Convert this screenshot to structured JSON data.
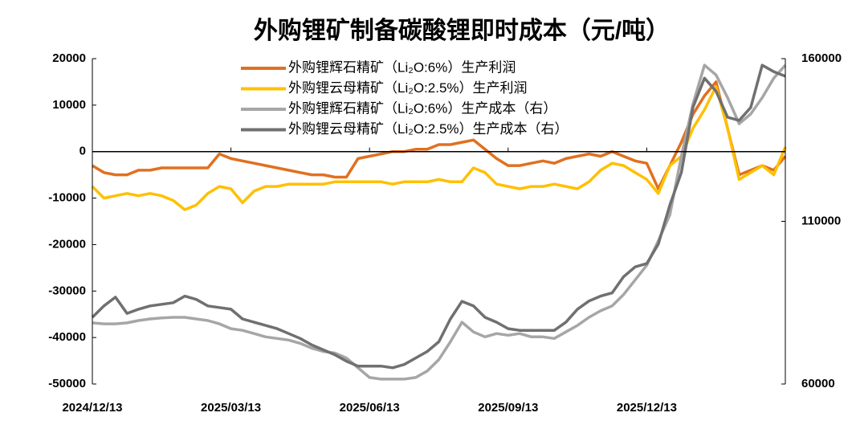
{
  "chart_data": {
    "type": "line",
    "title": "外购锂矿制备碳酸锂即时成本（元/吨）",
    "categories": [
      "2024/12/13",
      null,
      null,
      null,
      null,
      null,
      null,
      null,
      null,
      null,
      null,
      null,
      "2025/03/13",
      null,
      null,
      null,
      null,
      null,
      null,
      null,
      null,
      null,
      null,
      null,
      "2025/06/13",
      null,
      null,
      null,
      null,
      null,
      null,
      null,
      null,
      null,
      null,
      null,
      "2025/09/13",
      null,
      null,
      null,
      null,
      null,
      null,
      null,
      null,
      null,
      null,
      null,
      "2025/12/13",
      null,
      null,
      null,
      null,
      null,
      null,
      null,
      null,
      null,
      null,
      null,
      null
    ],
    "series": [
      {
        "name": "外购锂辉石精矿（Li₂O:6%）生产利润",
        "color": "#e07020",
        "values": [
          -3000,
          -4500,
          -5000,
          -5000,
          -4000,
          -4000,
          -3500,
          -3500,
          -3500,
          -3500,
          -3500,
          -500,
          -1500,
          -2000,
          -2500,
          -3000,
          -3500,
          -4000,
          -4500,
          -5000,
          -5000,
          -5500,
          -5500,
          -1500,
          -1000,
          -500,
          0,
          0,
          500,
          500,
          1500,
          1500,
          2000,
          2500,
          500,
          -1500,
          -3000,
          -3000,
          -2500,
          -2000,
          -2500,
          -1500,
          -1000,
          -500,
          -1000,
          0,
          -1000,
          -2000,
          -2500,
          -8000,
          -3000,
          2000,
          8000,
          12000,
          15000,
          5000,
          -5000,
          -4000,
          -3000,
          -4000,
          -1000
        ]
      },
      {
        "name": "外购锂云母精矿（Li₂O:2.5%）生产利润",
        "color": "#ffc000",
        "values": [
          -7500,
          -10000,
          -9500,
          -9000,
          -9500,
          -9000,
          -9500,
          -10500,
          -12500,
          -11500,
          -9000,
          -7500,
          -8000,
          -11000,
          -8500,
          -7500,
          -7500,
          -7000,
          -7000,
          -7000,
          -7000,
          -6500,
          -6500,
          -6500,
          -6500,
          -6500,
          -7000,
          -6500,
          -6500,
          -6500,
          -6000,
          -6500,
          -6500,
          -3500,
          -4500,
          -7000,
          -7500,
          -8000,
          -7500,
          -7500,
          -7000,
          -7500,
          -8000,
          -6500,
          -4000,
          -2500,
          -3000,
          -4500,
          -6000,
          -9000,
          -3000,
          -1000,
          5000,
          9000,
          14000,
          5000,
          -6000,
          -4500,
          -3000,
          -5000,
          1000
        ]
      },
      {
        "name": "外购锂辉石精矿（Li₂O:6%）生产成本（右）",
        "color": "#a6a6a6",
        "axis": "y2",
        "values": [
          78800,
          78500,
          78500,
          78800,
          79500,
          80000,
          80300,
          80500,
          80500,
          80000,
          79500,
          78500,
          77000,
          76500,
          75500,
          74500,
          74000,
          73500,
          72500,
          71000,
          70000,
          69500,
          68000,
          65000,
          62000,
          61500,
          61500,
          61500,
          62000,
          64000,
          67500,
          73000,
          79000,
          76000,
          74500,
          75500,
          75000,
          75500,
          74500,
          74500,
          74000,
          76000,
          78000,
          80500,
          82500,
          84000,
          87500,
          92000,
          96500,
          104000,
          112000,
          130000,
          146000,
          158000,
          155000,
          148000,
          140000,
          143000,
          148000,
          154000,
          158000
        ]
      },
      {
        "name": "外购锂云母精矿（Li₂O:2.5%）生产成本（右）",
        "color": "#707070",
        "axis": "y2",
        "values": [
          80500,
          84000,
          86700,
          81700,
          83000,
          84000,
          84500,
          85000,
          87000,
          86000,
          84000,
          83500,
          83000,
          80000,
          79000,
          78000,
          77000,
          75500,
          74000,
          72000,
          70500,
          69000,
          67000,
          65500,
          65500,
          65500,
          65000,
          66000,
          68000,
          70000,
          73000,
          80000,
          85400,
          84000,
          80500,
          79000,
          77000,
          76500,
          76500,
          76500,
          76500,
          79000,
          83000,
          85500,
          87000,
          88000,
          93000,
          96000,
          97000,
          103000,
          115000,
          125000,
          145000,
          154000,
          150000,
          142000,
          141000,
          145000,
          158000,
          156000,
          154600
        ]
      }
    ],
    "ylim": [
      -50000,
      20000
    ],
    "yticks": [
      20000,
      10000,
      0,
      -10000,
      -20000,
      -30000,
      -40000,
      -50000
    ],
    "y2lim": [
      60000,
      160000
    ],
    "y2ticks": [
      160000,
      110000,
      60000
    ]
  }
}
